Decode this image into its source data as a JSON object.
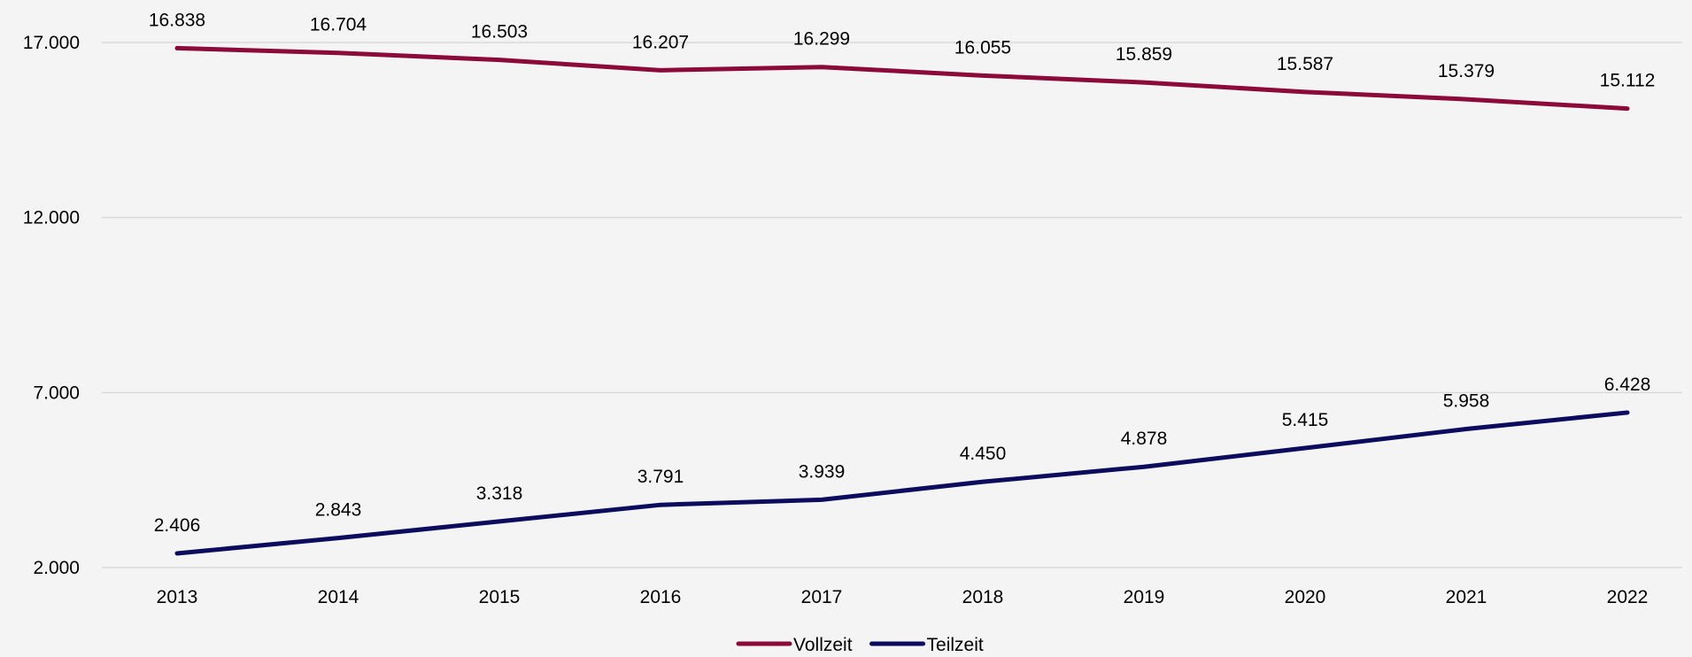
{
  "chart_data": {
    "type": "line",
    "title": "",
    "xlabel": "",
    "ylabel": "",
    "categories": [
      "2013",
      "2014",
      "2015",
      "2016",
      "2017",
      "2018",
      "2019",
      "2020",
      "2021",
      "2022"
    ],
    "ylim": [
      2000,
      17000
    ],
    "yticks": [
      2000,
      7000,
      12000,
      17000
    ],
    "ytick_labels": [
      "2.000",
      "7.000",
      "12.000",
      "17.000"
    ],
    "grid": true,
    "legend_position": "bottom",
    "series": [
      {
        "name": "Vollzeit",
        "color": "#8b0a3a",
        "values": [
          16838,
          16704,
          16503,
          16207,
          16299,
          16055,
          15859,
          15587,
          15379,
          15112
        ],
        "labels": [
          "16.838",
          "16.704",
          "16.503",
          "16.207",
          "16.299",
          "16.055",
          "15.859",
          "15.587",
          "15.379",
          "15.112"
        ]
      },
      {
        "name": "Teilzeit",
        "color": "#0c0c5e",
        "values": [
          2406,
          2843,
          3318,
          3791,
          3939,
          4450,
          4878,
          5415,
          5958,
          6428
        ],
        "labels": [
          "2.406",
          "2.843",
          "3.318",
          "3.791",
          "3.939",
          "4.450",
          "4.878",
          "5.415",
          "5.958",
          "6.428"
        ]
      }
    ]
  }
}
